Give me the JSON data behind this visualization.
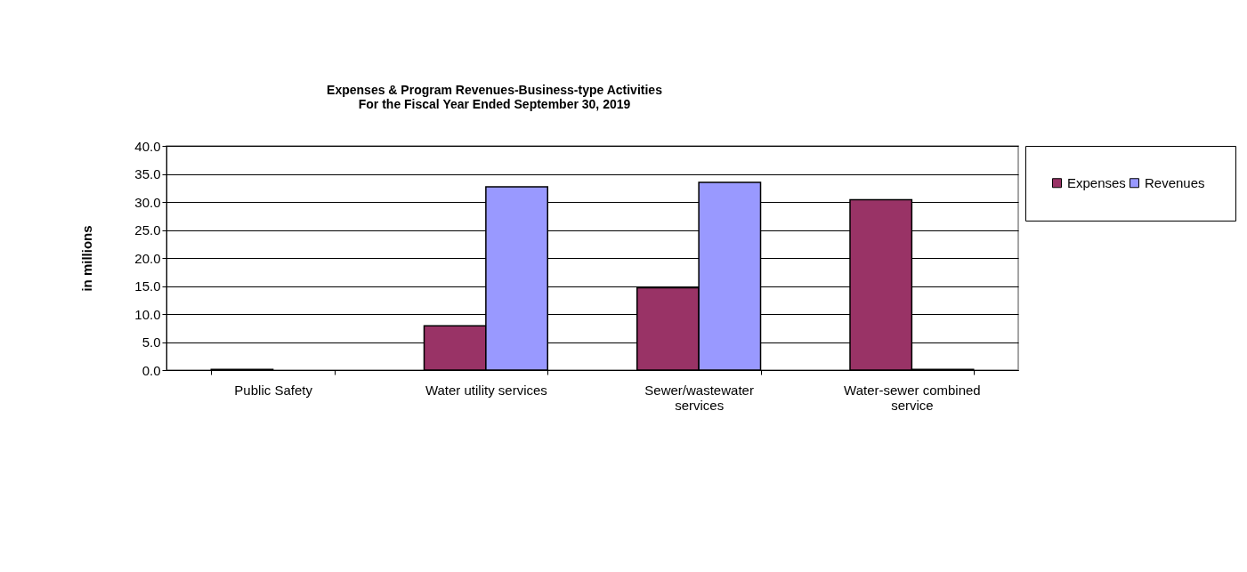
{
  "chart_data": {
    "type": "bar",
    "title": "Expenses & Program Revenues-Business-type Activities",
    "subtitle": "For the Fiscal Year Ended September 30, 2019",
    "ylabel": "in millions",
    "categories": [
      "Public Safety",
      "Water utility services",
      "Sewer/wastewater services",
      "Water-sewer combined service"
    ],
    "series": [
      {
        "name": "Expenses",
        "color": "#993366",
        "values": [
          0.1,
          7.9,
          14.7,
          30.4
        ]
      },
      {
        "name": "Revenues",
        "color": "#9999ff",
        "values": [
          null,
          32.7,
          33.5,
          0.1
        ]
      }
    ],
    "ylim": [
      0,
      40
    ],
    "yticks": [
      {
        "value": 0,
        "label": "0.0"
      },
      {
        "value": 5,
        "label": "5.0"
      },
      {
        "value": 10,
        "label": "10.0"
      },
      {
        "value": 15,
        "label": "15.0"
      },
      {
        "value": 20,
        "label": "20.0"
      },
      {
        "value": 25,
        "label": "25.0"
      },
      {
        "value": 30,
        "label": "30.0"
      },
      {
        "value": 35,
        "label": "35.0"
      },
      {
        "value": 40,
        "label": "40.0"
      }
    ],
    "grid": "y",
    "legend": "right"
  }
}
